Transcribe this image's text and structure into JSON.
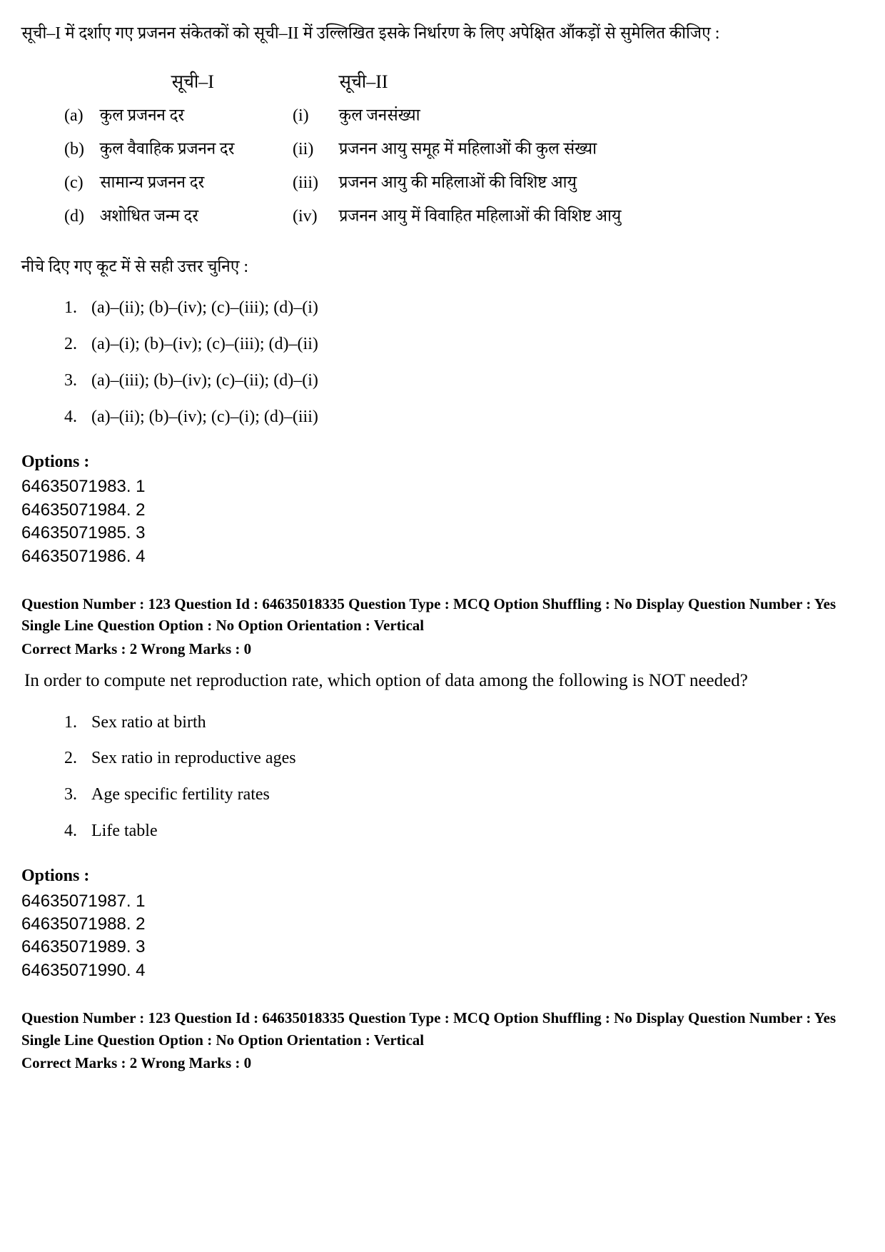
{
  "q1": {
    "intro": "सूची–I में दर्शाए गए प्रजनन संकेतकों को सूची–II  में उल्लिखित इसके निर्धारण के लिए अपेक्षित आँकड़ों से सुमेलित कीजिए :",
    "list1_head": "सूची–I",
    "list2_head": "सूची–II",
    "rows": [
      {
        "m1": "(a)",
        "t1": "कुल प्रजनन दर",
        "m2": "(i)",
        "t2": "कुल जनसंख्या"
      },
      {
        "m1": "(b)",
        "t1": "कुल वैवाहिक प्रजनन दर",
        "m2": "(ii)",
        "t2": "प्रजनन आयु समूह में महिलाओं की कुल संख्या"
      },
      {
        "m1": "(c)",
        "t1": "सामान्य प्रजनन दर",
        "m2": "(iii)",
        "t2": "प्रजनन आयु की महिलाओं की विशिष्ट आयु"
      },
      {
        "m1": "(d)",
        "t1": "अशोधित जन्म दर",
        "m2": "(iv)",
        "t2": "प्रजनन आयु में विवाहित महिलाओं की विशिष्ट आयु"
      }
    ],
    "choose": "नीचे दिए गए कूट में से सही उत्तर चुनिए :",
    "codes": [
      "(a)–(ii); (b)–(iv); (c)–(iii); (d)–(i)",
      "(a)–(i); (b)–(iv); (c)–(iii); (d)–(ii)",
      "(a)–(iii); (b)–(iv); (c)–(ii); (d)–(i)",
      "(a)–(ii); (b)–(iv); (c)–(i); (d)–(iii)"
    ],
    "options_label": "Options :",
    "options": [
      "64635071983. 1",
      "64635071984. 2",
      "64635071985. 3",
      "64635071986. 4"
    ]
  },
  "q2": {
    "header": "Question Number : 123  Question Id : 64635018335  Question Type : MCQ  Option Shuffling : No  Display Question Number : Yes  Single Line Question Option : No  Option Orientation : Vertical",
    "marks": "Correct Marks : 2  Wrong Marks : 0",
    "text": "In order to compute net reproduction rate, which option of data among the following is NOT needed?",
    "answers": [
      "Sex ratio at birth",
      "Sex ratio in reproductive ages",
      "Age specific fertility rates",
      "Life table"
    ],
    "options_label": "Options :",
    "options": [
      "64635071987. 1",
      "64635071988. 2",
      "64635071989. 3",
      "64635071990. 4"
    ]
  },
  "q3": {
    "header": "Question Number : 123  Question Id : 64635018335  Question Type : MCQ  Option Shuffling : No  Display Question Number : Yes  Single Line Question Option : No  Option Orientation : Vertical",
    "marks": "Correct Marks : 2  Wrong Marks : 0"
  },
  "nums": {
    "n1": "1.",
    "n2": "2.",
    "n3": "3.",
    "n4": "4."
  }
}
